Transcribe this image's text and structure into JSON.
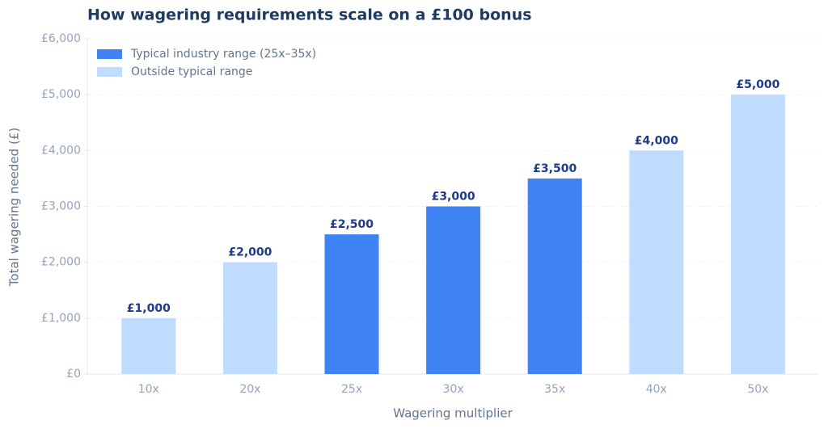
{
  "chart_data": {
    "type": "bar",
    "title": "How wagering requirements scale on a £100 bonus",
    "x_label": "Wagering multiplier",
    "y_label": "Total wagering needed (£)",
    "categories": [
      "10x",
      "20x",
      "25x",
      "30x",
      "35x",
      "40x",
      "50x"
    ],
    "series": [
      {
        "name": "Typical industry range (25x–35x)",
        "color": "#3f83f5",
        "values": [
          null,
          null,
          2500,
          3000,
          3500,
          null,
          null
        ],
        "value_labels": [
          null,
          null,
          "£2,500",
          "£3,000",
          "£3,500",
          null,
          null
        ]
      },
      {
        "name": "Outside typical range",
        "color": "#bfdbfd",
        "values": [
          1000,
          2000,
          null,
          null,
          null,
          4000,
          5000
        ],
        "value_labels": [
          "£1,000",
          "£2,000",
          null,
          null,
          null,
          "£4,000",
          "£5,000"
        ]
      }
    ],
    "ylim": [
      0,
      6000
    ],
    "yticks": [
      {
        "value": 0,
        "label": "£0"
      },
      {
        "value": 1000,
        "label": "£1,000"
      },
      {
        "value": 2000,
        "label": "£2,000"
      },
      {
        "value": 3000,
        "label": "£3,000"
      },
      {
        "value": 4000,
        "label": "£4,000"
      },
      {
        "value": 5000,
        "label": "£5,000"
      },
      {
        "value": 6000,
        "label": "£6,000"
      }
    ],
    "grid": true,
    "legend": "upper-left"
  }
}
